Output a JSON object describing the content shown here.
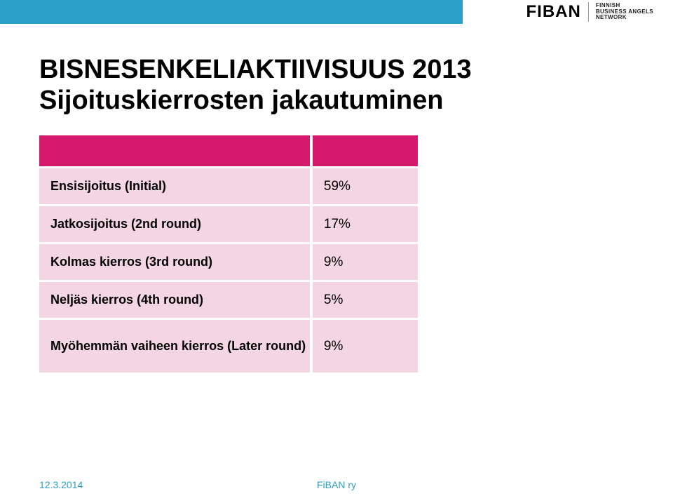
{
  "brand": {
    "name": "FIBAN",
    "subline1": "FINNISH",
    "subline2": "BUSINESS ANGELS",
    "subline3": "NETWORK"
  },
  "title": "BISNESENKELIAKTIIVISUUS 2013",
  "subtitle": "Sijoituskierrosten jakautuminen",
  "table": {
    "header_bg": "#d51a6e",
    "row_bg": "#f4d5e4",
    "rows": [
      {
        "label": "Ensisijoitus (Initial)",
        "value": "59%"
      },
      {
        "label": "Jatkosijoitus (2nd round)",
        "value": "17%"
      },
      {
        "label": "Kolmas kierros (3rd round)",
        "value": "9%"
      },
      {
        "label": "Neljäs kierros (4th round)",
        "value": "5%"
      },
      {
        "label": "Myöhemmän vaiheen kierros (Later round)",
        "value": "9%"
      }
    ]
  },
  "footer": {
    "date": "12.3.2014",
    "org": "FiBAN ry"
  }
}
